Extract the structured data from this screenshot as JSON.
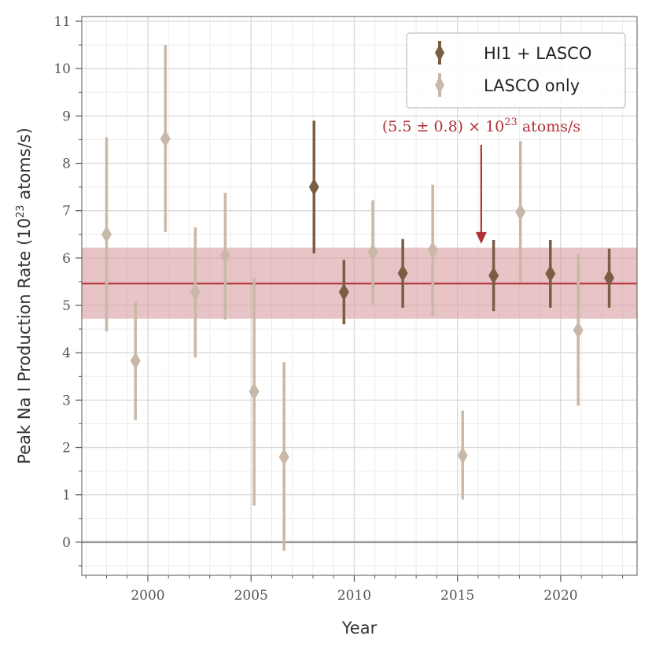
{
  "chart_data": {
    "type": "scatter",
    "title": "",
    "xlabel": "Year",
    "ylabel": "Peak Na I Production Rate (10",
    "ylabel_sup": "23",
    "ylabel_tail": " atoms/s)",
    "xlim": [
      1996.8,
      2023.7
    ],
    "ylim": [
      -0.7,
      11.1
    ],
    "x_ticks": [
      2000,
      2005,
      2010,
      2015,
      2020
    ],
    "x_tick_labels": [
      "2000",
      "2005",
      "2010",
      "2015",
      "2020"
    ],
    "y_ticks": [
      0,
      1,
      2,
      3,
      4,
      5,
      6,
      7,
      8,
      9,
      10,
      11
    ],
    "y_tick_labels": [
      "0",
      "1",
      "2",
      "3",
      "4",
      "5",
      "6",
      "7",
      "8",
      "9",
      "10",
      "11"
    ],
    "grid": true,
    "legend_position": "top-right",
    "mean": {
      "value": 5.46,
      "low": 4.72,
      "high": 6.22,
      "color": "#b03035",
      "band_color": "#d89ca2"
    },
    "annotation": {
      "prefix": "(5.5 ± 0.8) × 10",
      "sup": "23",
      "suffix": " atoms/s",
      "arrow_x": 2016.15,
      "arrow_y_start": 8.4,
      "arrow_y_end": 6.3,
      "color": "#b03035"
    },
    "series": [
      {
        "name": "HI1 + LASCO",
        "color": "#7a5e44",
        "points": [
          {
            "x": 2008.05,
            "y": 7.5,
            "low": 6.1,
            "high": 8.9
          },
          {
            "x": 2009.5,
            "y": 5.28,
            "low": 4.6,
            "high": 5.96
          },
          {
            "x": 2012.35,
            "y": 5.68,
            "low": 4.95,
            "high": 6.4
          },
          {
            "x": 2016.75,
            "y": 5.63,
            "low": 4.88,
            "high": 6.38
          },
          {
            "x": 2019.5,
            "y": 5.67,
            "low": 4.95,
            "high": 6.38
          },
          {
            "x": 2022.35,
            "y": 5.58,
            "low": 4.95,
            "high": 6.2
          }
        ]
      },
      {
        "name": "LASCO only",
        "color": "#c9b8a7",
        "points": [
          {
            "x": 1998.0,
            "y": 6.5,
            "low": 4.45,
            "high": 8.55
          },
          {
            "x": 1999.4,
            "y": 3.83,
            "low": 2.58,
            "high": 5.08
          },
          {
            "x": 2000.85,
            "y": 8.52,
            "low": 6.55,
            "high": 10.5
          },
          {
            "x": 2002.3,
            "y": 5.28,
            "low": 3.9,
            "high": 6.65
          },
          {
            "x": 2003.75,
            "y": 6.05,
            "low": 4.7,
            "high": 7.38
          },
          {
            "x": 2005.15,
            "y": 3.18,
            "low": 0.77,
            "high": 5.58
          },
          {
            "x": 2006.6,
            "y": 1.8,
            "low": -0.18,
            "high": 3.8
          },
          {
            "x": 2010.9,
            "y": 6.12,
            "low": 5.02,
            "high": 7.22
          },
          {
            "x": 2013.8,
            "y": 6.17,
            "low": 4.78,
            "high": 7.55
          },
          {
            "x": 2015.25,
            "y": 1.83,
            "low": 0.9,
            "high": 2.78
          },
          {
            "x": 2018.05,
            "y": 6.97,
            "low": 5.48,
            "high": 8.47
          },
          {
            "x": 2020.85,
            "y": 4.48,
            "low": 2.88,
            "high": 6.08
          }
        ]
      }
    ]
  }
}
